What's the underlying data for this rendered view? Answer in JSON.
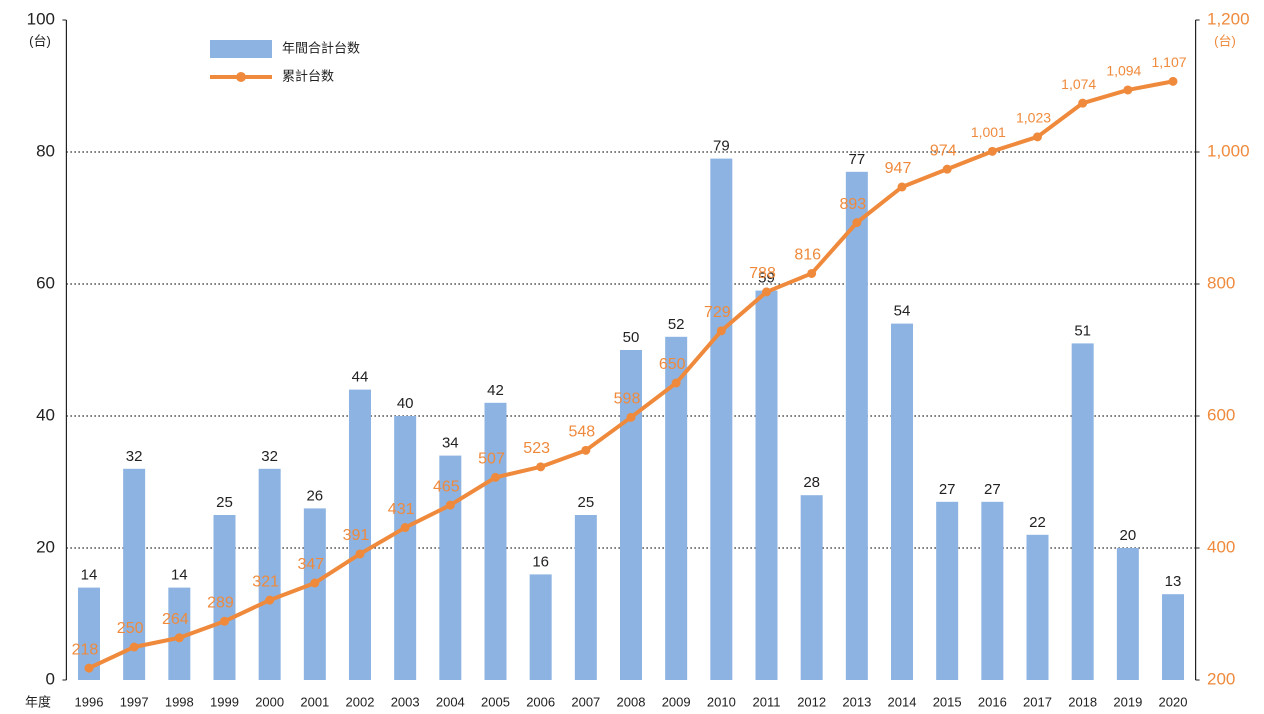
{
  "chart_data": {
    "type": "bar",
    "x_label": "年度",
    "y_label": "(台)",
    "y2_label": "(台)",
    "categories": [
      "1996",
      "1997",
      "1998",
      "1999",
      "2000",
      "2001",
      "2002",
      "2003",
      "2004",
      "2005",
      "2006",
      "2007",
      "2008",
      "2009",
      "2010",
      "2011",
      "2012",
      "2013",
      "2014",
      "2015",
      "2016",
      "2017",
      "2018",
      "2019",
      "2020"
    ],
    "series": [
      {
        "name": "年間合計台数",
        "type": "bar",
        "color": "#8db3e2",
        "values": [
          14,
          32,
          14,
          25,
          32,
          26,
          44,
          40,
          34,
          42,
          16,
          25,
          50,
          52,
          79,
          59,
          28,
          77,
          54,
          27,
          27,
          22,
          51,
          20,
          13
        ]
      },
      {
        "name": "累計台数",
        "type": "line",
        "axis": "y2",
        "color": "#ef8a3c",
        "values": [
          218,
          250,
          264,
          289,
          321,
          347,
          391,
          431,
          465,
          507,
          523,
          548,
          598,
          650,
          729,
          788,
          816,
          893,
          947,
          974,
          1001,
          1023,
          1074,
          1094,
          1107
        ],
        "value_labels": [
          "218",
          "250",
          "264",
          "289",
          "321",
          "347",
          "391",
          "431",
          "465",
          "507",
          "523",
          "548",
          "598",
          "650",
          "729",
          "788",
          "816",
          "893",
          "947",
          "974",
          "1,001",
          "1,023",
          "1,074",
          "1,094",
          "1,107"
        ]
      }
    ],
    "ylim": [
      0,
      100
    ],
    "yticks": [
      0,
      20,
      40,
      60,
      80,
      100
    ],
    "y2lim": [
      200,
      1200
    ],
    "y2ticks": [
      200,
      400,
      600,
      800,
      {
        "value": 1000,
        "label": "1,000"
      },
      {
        "value": 1200,
        "label": "1,200"
      }
    ],
    "grid": true,
    "legend": "upper left"
  }
}
